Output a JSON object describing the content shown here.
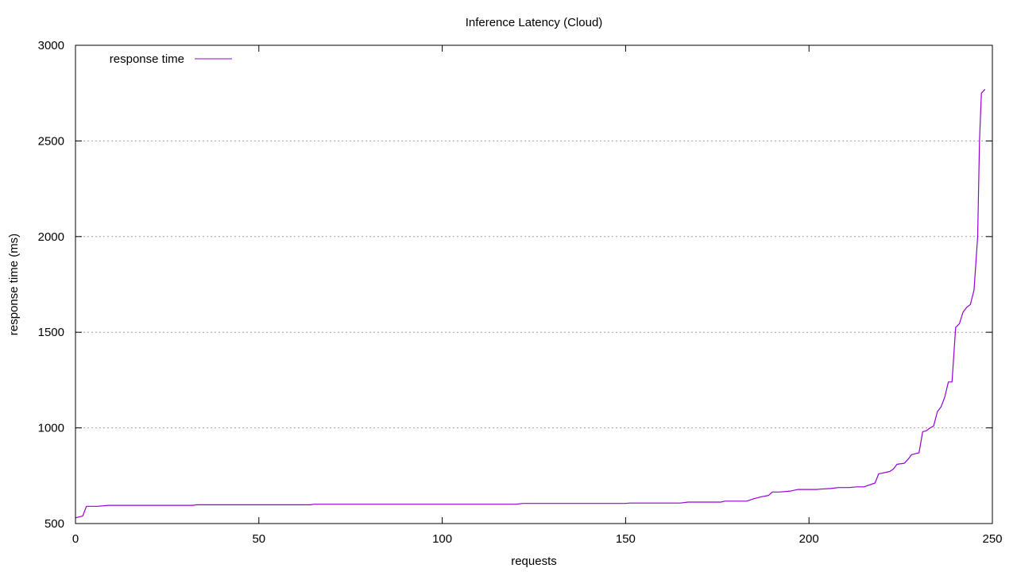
{
  "chart_data": {
    "type": "line",
    "title": "Inference Latency (Cloud)",
    "xlabel": "requests",
    "ylabel": "response time (ms)",
    "xlim": [
      0,
      250
    ],
    "ylim": [
      500,
      3000
    ],
    "xticks": [
      "0",
      "50",
      "100",
      "150",
      "200",
      "250"
    ],
    "yticks": [
      "500",
      "1000",
      "1500",
      "2000",
      "2500",
      "3000"
    ],
    "grid": "horizontal dotted",
    "legend_position": "top-left",
    "series": [
      {
        "name": "response time",
        "color": "#9400d3",
        "x": [
          0,
          2,
          3,
          6,
          9,
          20,
          32,
          33,
          50,
          64,
          65,
          100,
          120,
          122,
          150,
          151,
          165,
          167,
          176,
          177,
          183,
          185,
          187,
          189,
          190,
          192,
          195,
          197,
          202,
          203,
          206,
          208,
          211,
          213,
          215,
          218,
          219,
          222,
          223,
          224,
          226,
          227,
          228,
          229,
          230,
          231,
          232,
          233,
          234,
          235,
          236,
          237,
          238,
          239,
          240,
          241,
          242,
          243,
          244,
          245,
          246,
          246.5,
          247,
          248
        ],
        "y": [
          530,
          540,
          590,
          590,
          595,
          595,
          595,
          598,
          598,
          598,
          601,
          601,
          601,
          605,
          605,
          607,
          607,
          612,
          612,
          617,
          617,
          630,
          640,
          647,
          665,
          665,
          670,
          678,
          678,
          680,
          683,
          688,
          688,
          692,
          692,
          712,
          760,
          772,
          785,
          810,
          815,
          835,
          860,
          865,
          870,
          980,
          985,
          1000,
          1010,
          1085,
          1110,
          1160,
          1240,
          1240,
          1525,
          1545,
          1605,
          1630,
          1645,
          1720,
          2000,
          2500,
          2750,
          2770
        ]
      }
    ]
  }
}
